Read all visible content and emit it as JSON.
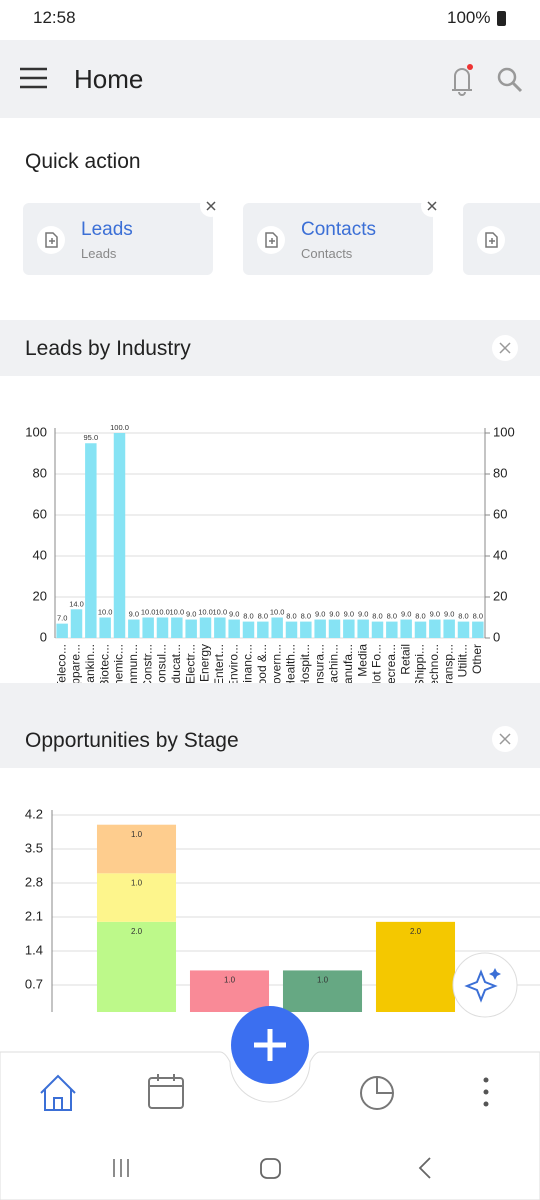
{
  "status": {
    "time": "12:58",
    "battery": "100%"
  },
  "header": {
    "title": "Home"
  },
  "quick_action": {
    "title": "Quick action",
    "cards": [
      {
        "title": "Leads",
        "subtitle": "Leads"
      },
      {
        "title": "Contacts",
        "subtitle": "Contacts"
      }
    ]
  },
  "chart_data": [
    {
      "type": "bar",
      "title": "Leads by Industry",
      "color": "#86e3f4",
      "categories": [
        "Teleco...",
        "Appare...",
        "Bankin...",
        "Biotec...",
        "Chemic...",
        "Immun...",
        "Constr...",
        "Consul...",
        "Educat...",
        "Electr...",
        "Energy",
        "Entert...",
        "Enviro...",
        "Financ...",
        "Food &...",
        "Govern...",
        "Health...",
        "Hospit...",
        "Insura...",
        "Machin...",
        "Manufa...",
        "Media",
        "Not Fo...",
        "Recrea...",
        "Retail",
        "Shippi...",
        "Techno...",
        "Transp...",
        "Utilit...",
        "Other"
      ],
      "values": [
        7,
        14,
        95,
        10,
        100,
        9,
        10,
        10,
        10,
        9,
        10,
        10,
        9,
        8,
        8,
        10,
        8,
        8,
        9,
        9,
        9,
        9,
        8,
        8,
        9,
        8,
        9,
        9,
        8,
        8
      ],
      "value_labels": [
        "7.0",
        "14.0",
        "95.0",
        "10.0",
        "100.0",
        "9.0",
        "10.0",
        "10.0",
        "10.0",
        "9.0",
        "10.0",
        "10.0",
        "9.0",
        "8.0",
        "8.0",
        "10.0",
        "8.0",
        "8.0",
        "9.0",
        "9.0",
        "9.0",
        "9.0",
        "8.0",
        "8.0",
        "9.0",
        "8.0",
        "9.0",
        "9.0",
        "8.0",
        "8.0"
      ],
      "ylim": [
        0,
        100
      ],
      "yticks": [
        0,
        20,
        40,
        60,
        80,
        100
      ],
      "y2lim": [
        0,
        100
      ],
      "y2ticks": [
        0,
        20,
        40,
        60,
        80,
        100
      ],
      "grid": true
    },
    {
      "type": "stacked_bar",
      "title": "Opportunities by Stage",
      "categories": [
        null,
        null,
        null,
        null
      ],
      "series": [
        {
          "color": "#bdf98a",
          "values": [
            2,
            null,
            null,
            null
          ],
          "value_labels": [
            "2.0",
            null,
            null,
            null
          ]
        },
        {
          "color": "#fdf58c",
          "values": [
            1,
            null,
            null,
            null
          ],
          "value_labels": [
            "1.0",
            null,
            null,
            null
          ]
        },
        {
          "color": "#fecd8e",
          "values": [
            1,
            null,
            null,
            null
          ],
          "value_labels": [
            "1.0",
            null,
            null,
            null
          ]
        },
        {
          "color": "#f98a97",
          "values": [
            null,
            1,
            null,
            null
          ],
          "value_labels": [
            null,
            "1.0",
            null,
            null
          ]
        },
        {
          "color": "#66a883",
          "values": [
            null,
            null,
            1,
            null
          ],
          "value_labels": [
            null,
            null,
            "1.0",
            null
          ]
        },
        {
          "color": "#f4c800",
          "values": [
            null,
            null,
            null,
            2
          ],
          "value_labels": [
            null,
            null,
            null,
            "2.0"
          ]
        }
      ],
      "ylim": [
        0,
        4.2
      ],
      "yticks": [
        0.7,
        1.4,
        2.1,
        2.8,
        3.5,
        4.2
      ],
      "grid": true
    }
  ]
}
